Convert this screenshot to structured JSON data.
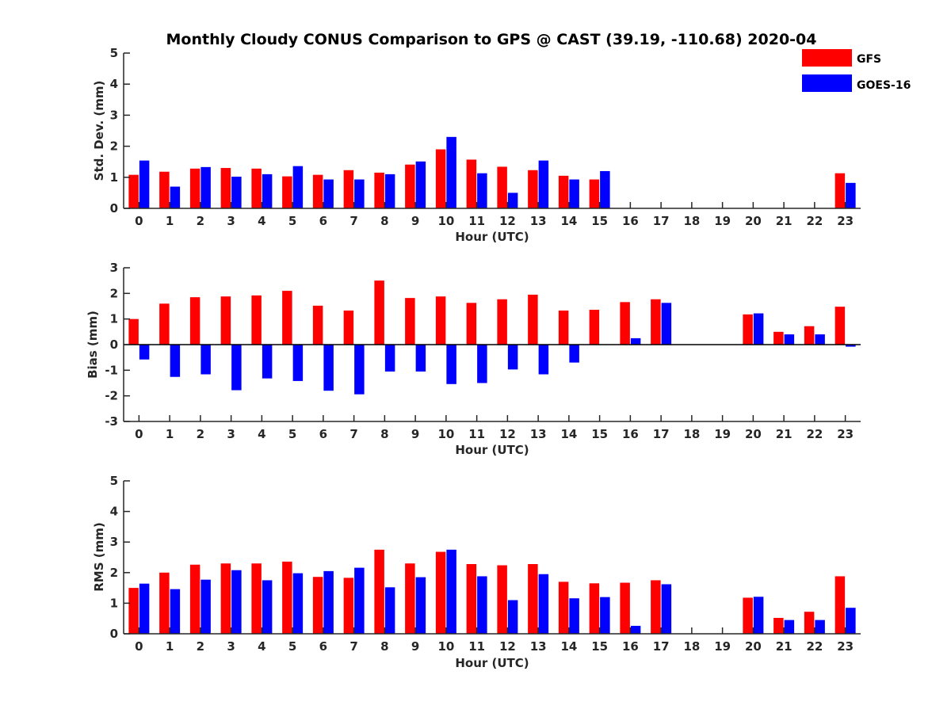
{
  "title": "Monthly Cloudy CONUS Comparison to GPS @ CAST (39.19, -110.68) 2020-04",
  "legend": {
    "placement": "top-right",
    "items": [
      {
        "label": "GFS",
        "color": "#ff0000"
      },
      {
        "label": "GOES-16",
        "color": "#0000ff"
      }
    ]
  },
  "chart_data": [
    {
      "type": "bar",
      "xlabel": "Hour (UTC)",
      "ylabel": "Std. Dev. (mm)",
      "ylim": [
        0,
        5
      ],
      "yticks": [
        0,
        1,
        2,
        3,
        4,
        5
      ],
      "categories": [
        "0",
        "1",
        "2",
        "3",
        "4",
        "5",
        "6",
        "7",
        "8",
        "9",
        "10",
        "11",
        "12",
        "13",
        "14",
        "15",
        "16",
        "17",
        "18",
        "19",
        "20",
        "21",
        "22",
        "23"
      ],
      "series": [
        {
          "name": "GFS",
          "color": "#ff0000",
          "values": [
            1.08,
            1.18,
            1.28,
            1.3,
            1.28,
            1.03,
            1.08,
            1.23,
            1.15,
            1.41,
            1.9,
            1.57,
            1.34,
            1.23,
            1.05,
            0.93,
            null,
            null,
            null,
            null,
            null,
            null,
            null,
            1.13
          ]
        },
        {
          "name": "GOES-16",
          "color": "#0000ff",
          "values": [
            1.54,
            0.7,
            1.33,
            1.02,
            1.1,
            1.36,
            0.93,
            0.93,
            1.1,
            1.51,
            2.3,
            1.13,
            0.5,
            1.54,
            0.93,
            1.2,
            null,
            null,
            null,
            null,
            null,
            null,
            null,
            0.82
          ]
        }
      ]
    },
    {
      "type": "bar",
      "xlabel": "Hour (UTC)",
      "ylabel": "Bias (mm)",
      "ylim": [
        -3,
        3
      ],
      "yticks": [
        -3,
        -2,
        -1,
        0,
        1,
        2,
        3
      ],
      "categories": [
        "0",
        "1",
        "2",
        "3",
        "4",
        "5",
        "6",
        "7",
        "8",
        "9",
        "10",
        "11",
        "12",
        "13",
        "14",
        "15",
        "16",
        "17",
        "18",
        "19",
        "20",
        "21",
        "22",
        "23"
      ],
      "series": [
        {
          "name": "GFS",
          "color": "#ff0000",
          "values": [
            1.0,
            1.6,
            1.85,
            1.88,
            1.92,
            2.1,
            1.52,
            1.33,
            2.5,
            1.82,
            1.88,
            1.63,
            1.77,
            1.95,
            1.33,
            1.36,
            1.66,
            1.77,
            null,
            null,
            1.18,
            0.5,
            0.72,
            1.48
          ]
        },
        {
          "name": "GOES-16",
          "color": "#0000ff",
          "values": [
            -0.58,
            -1.26,
            -1.16,
            -1.78,
            -1.32,
            -1.42,
            -1.8,
            -1.94,
            -1.05,
            -1.05,
            -1.54,
            -1.5,
            -0.97,
            -1.16,
            -0.7,
            null,
            0.25,
            1.63,
            null,
            null,
            1.22,
            0.4,
            0.4,
            -0.08
          ]
        }
      ]
    },
    {
      "type": "bar",
      "xlabel": "Hour (UTC)",
      "ylabel": "RMS (mm)",
      "ylim": [
        0,
        5
      ],
      "yticks": [
        0,
        1,
        2,
        3,
        4,
        5
      ],
      "categories": [
        "0",
        "1",
        "2",
        "3",
        "4",
        "5",
        "6",
        "7",
        "8",
        "9",
        "10",
        "11",
        "12",
        "13",
        "14",
        "15",
        "16",
        "17",
        "18",
        "19",
        "20",
        "21",
        "22",
        "23"
      ],
      "series": [
        {
          "name": "GFS",
          "color": "#ff0000",
          "values": [
            1.5,
            2.0,
            2.26,
            2.3,
            2.3,
            2.36,
            1.86,
            1.83,
            2.75,
            2.3,
            2.68,
            2.28,
            2.24,
            2.28,
            1.7,
            1.65,
            1.67,
            1.75,
            null,
            null,
            1.18,
            0.52,
            0.72,
            1.88
          ]
        },
        {
          "name": "GOES-16",
          "color": "#0000ff",
          "values": [
            1.64,
            1.46,
            1.77,
            2.08,
            1.75,
            1.98,
            2.05,
            2.16,
            1.52,
            1.85,
            2.75,
            1.88,
            1.1,
            1.95,
            1.16,
            1.2,
            0.26,
            1.62,
            null,
            null,
            1.21,
            0.45,
            0.45,
            0.85
          ]
        }
      ]
    }
  ]
}
